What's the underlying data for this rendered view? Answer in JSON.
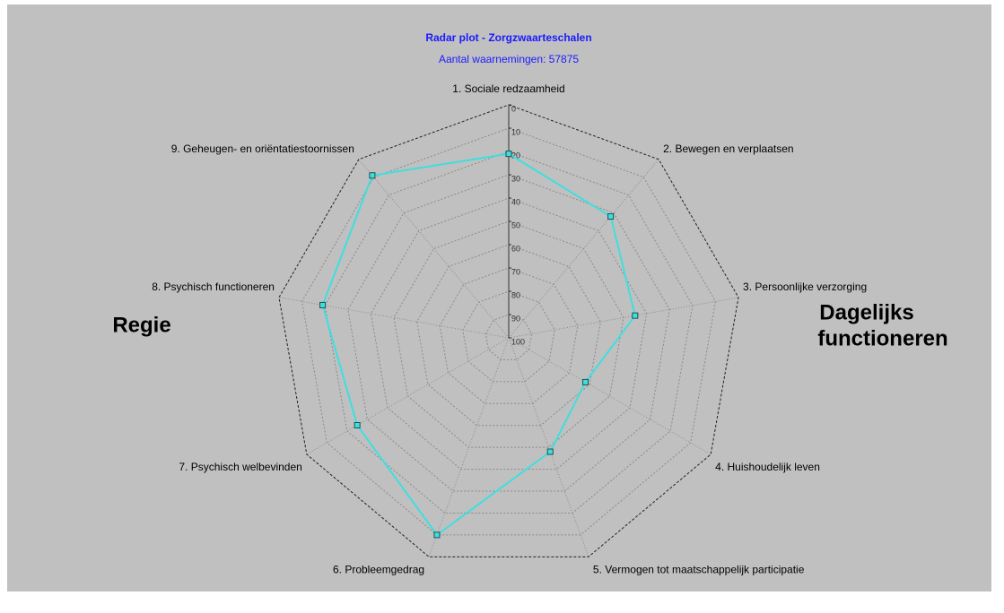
{
  "chart_data": {
    "type": "radar",
    "title": "Radar plot - Zorgzwaarteschalen",
    "subtitle": "Aantal waarnemingen: 57875",
    "side_labels": {
      "left": "Regie",
      "right": [
        "Dagelijks",
        "functioneren"
      ]
    },
    "categories": [
      "1. Sociale redzaamheid",
      "2. Bewegen en verplaatsen",
      "3. Persoonlijke verzorging",
      "4. Huishoudelijk leven",
      "5. Vermogen tot maatschappelijk participatie",
      "6. Probleemgedrag",
      "7. Psychisch welbevinden",
      "8. Psychisch functioneren",
      "9. Geheugen- en oriëntatiestoornissen"
    ],
    "series": [
      {
        "color": "#40dede",
        "values": [
          21,
          32,
          45,
          62,
          48,
          10,
          25,
          19,
          9
        ]
      }
    ],
    "rlim": [
      100,
      0
    ],
    "rticks": [
      0,
      10,
      20,
      30,
      40,
      50,
      60,
      70,
      80,
      90,
      100
    ],
    "grid": true
  }
}
